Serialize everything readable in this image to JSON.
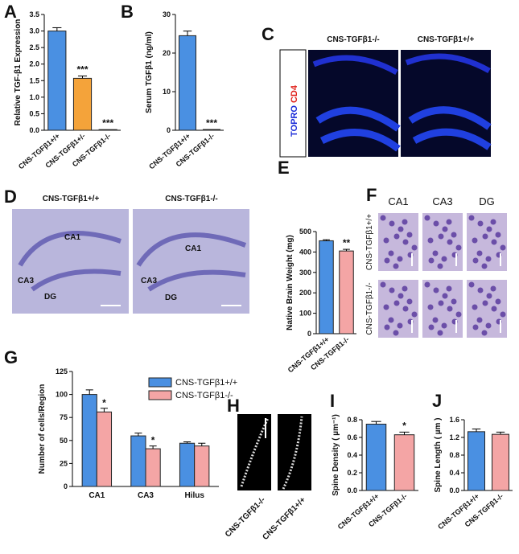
{
  "chart_data": [
    {
      "type": "bar",
      "panel": "A",
      "ylabel": "Relative TGF-β1 Expression",
      "categories": [
        "CNS-TGFβ1+/+",
        "CNS-TGFβ1+/-",
        "CNS-TGFβ1-/-"
      ],
      "values": [
        3.0,
        1.57,
        0.02
      ],
      "errors": [
        0.1,
        0.07,
        0
      ],
      "colors": [
        "#4a90e2",
        "#f4a33a",
        "#4a90e2"
      ],
      "annotations": [
        null,
        "***",
        "***"
      ],
      "ylim": [
        0,
        3.5
      ],
      "yticks": [
        {
          "value": 0,
          "label": "0.0"
        },
        {
          "value": 0.5,
          "label": "0.5"
        },
        {
          "value": 1,
          "label": "1.0"
        },
        {
          "value": 1.5,
          "label": "1.5"
        },
        {
          "value": 2,
          "label": "2.0"
        },
        {
          "value": 2.5,
          "label": "2.5"
        },
        {
          "value": 3,
          "label": "3.0"
        },
        {
          "value": 3.5,
          "label": "3.5"
        }
      ]
    },
    {
      "type": "bar",
      "panel": "B",
      "ylabel": "Serum TGFβ1 (ng/ml)",
      "categories": [
        "CNS-TGFβ1+/+",
        "CNS-TGFβ1-/-"
      ],
      "values": [
        24.5,
        0.2
      ],
      "errors": [
        1.2,
        0
      ],
      "colors": [
        "#4a90e2",
        "#4a90e2"
      ],
      "annotations": [
        null,
        "***"
      ],
      "ylim": [
        0,
        30
      ],
      "yticks": [
        0,
        10,
        20,
        30
      ]
    },
    {
      "type": "bar",
      "panel": "E",
      "ylabel": "Native Brain Weight (mg)",
      "categories": [
        "CNS-TGFβ1+/+",
        "CNS-TGFβ1-/-"
      ],
      "values": [
        455,
        405
      ],
      "errors": [
        5,
        8
      ],
      "colors": [
        "#4a90e2",
        "#f4a5a5"
      ],
      "annotations": [
        null,
        "**"
      ],
      "ylim": [
        0,
        500
      ],
      "yticks": [
        0,
        100,
        200,
        300,
        400,
        500
      ]
    },
    {
      "type": "grouped-bar",
      "panel": "G",
      "ylabel": "Number of cells/Region",
      "categories": [
        "CA1",
        "CA3",
        "Hilus"
      ],
      "series": [
        {
          "name": "CNS-TGFβ1+/+",
          "color": "#4a90e2",
          "values": [
            100,
            55,
            47
          ],
          "errors": [
            5,
            3,
            1.5
          ],
          "annotations": [
            null,
            null,
            null
          ]
        },
        {
          "name": "CNS-TGFβ1-/-",
          "color": "#f4a5a5",
          "values": [
            81,
            41,
            44
          ],
          "errors": [
            4,
            3,
            3
          ],
          "annotations": [
            "*",
            "*",
            null
          ]
        }
      ],
      "ylim": [
        0,
        125
      ],
      "yticks": [
        0,
        25,
        50,
        75,
        100,
        125
      ],
      "legend": "top-right"
    },
    {
      "type": "bar",
      "panel": "I",
      "ylabel": "Spine Density ( µm⁻¹)",
      "categories": [
        "CNS-TGFβ1+/+",
        "CNS-TGFβ1-/-"
      ],
      "values": [
        0.75,
        0.63
      ],
      "errors": [
        0.03,
        0.03
      ],
      "colors": [
        "#4a90e2",
        "#f4a5a5"
      ],
      "annotations": [
        null,
        "*"
      ],
      "ylim": [
        0,
        0.8
      ],
      "yticks": [
        {
          "value": 0,
          "label": "0.0"
        },
        0.2,
        0.4,
        0.6,
        0.8
      ]
    },
    {
      "type": "bar",
      "panel": "J",
      "ylabel": "Spine Length ( µm )",
      "categories": [
        "CNS-TGFβ1+/+",
        "CNS-TGFβ1-/-"
      ],
      "values": [
        1.33,
        1.27
      ],
      "errors": [
        0.06,
        0.05
      ],
      "colors": [
        "#4a90e2",
        "#f4a5a5"
      ],
      "annotations": [
        null,
        null
      ],
      "ylim": [
        0,
        1.6
      ],
      "yticks": [
        {
          "value": 0,
          "label": "0.0"
        },
        0.4,
        0.8,
        1.2,
        1.6
      ]
    }
  ],
  "panels": {
    "C": {
      "letter": "C",
      "channels": [
        "TOPRO",
        "CD4"
      ],
      "titles": [
        "CNS-TGFβ1-/-",
        "CNS-TGFβ1+/+"
      ]
    },
    "D": {
      "letter": "D",
      "titles": [
        "CNS-TGFβ1+/+",
        "CNS-TGFβ1-/-"
      ],
      "regions": [
        "CA1",
        "CA3",
        "DG"
      ]
    },
    "F": {
      "letter": "F",
      "columns": [
        "CA1",
        "CA3",
        "DG"
      ],
      "rows": [
        "CNS-TGFβ1+/+",
        "CNS-TGFβ1-/-"
      ]
    },
    "H": {
      "letter": "H",
      "labels": [
        "CNS-TGFβ1-/-",
        "CNS-TGFβ1+/+"
      ]
    }
  }
}
